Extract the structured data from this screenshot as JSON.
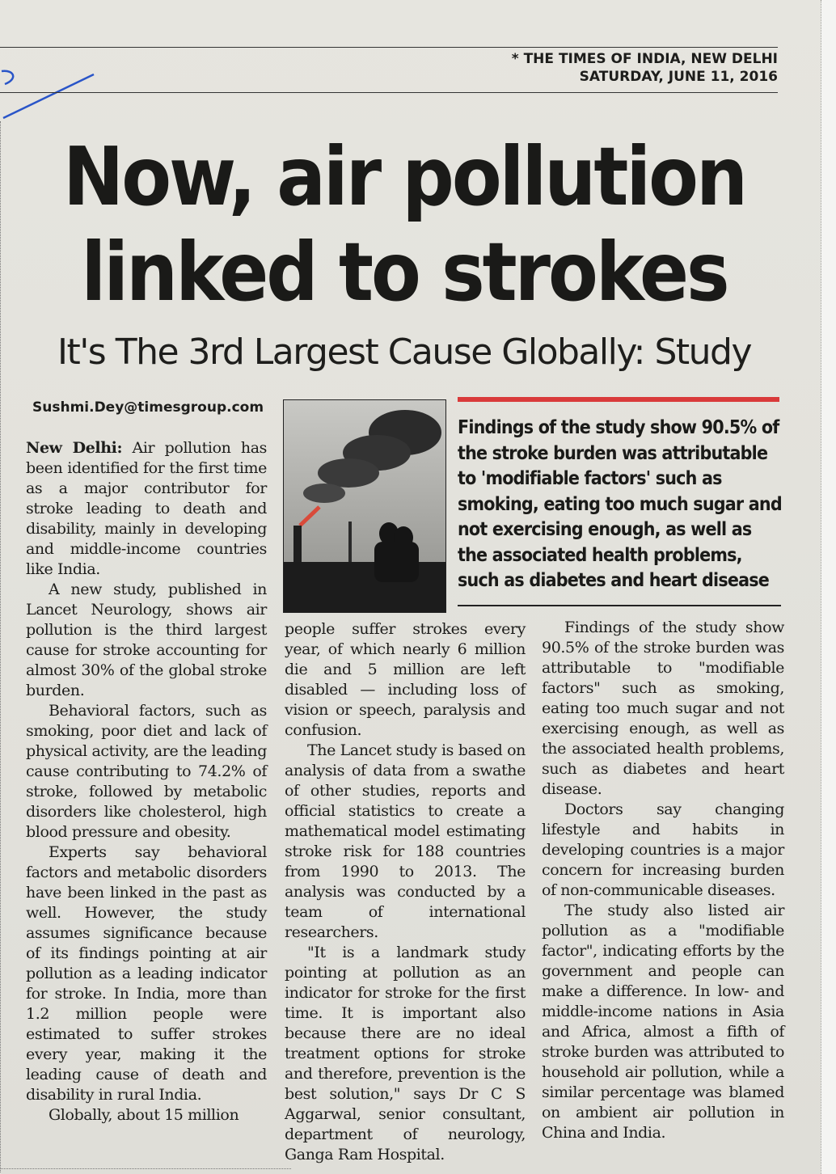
{
  "masthead": {
    "line1": "* THE TIMES OF INDIA, NEW DELHI",
    "line2": "SATURDAY, JUNE 11, 2016"
  },
  "headline": {
    "line1": "Now, air pollution",
    "line2": "linked to strokes"
  },
  "subheadline": "It's The 3rd Largest Cause Globally: Study",
  "byline": "Sushmi.Dey@timesgroup.com",
  "pull_quote": "Findings of the study show 90.5% of the stroke burden was attributable to 'modifiable factors' such as smoking, eating too much sugar and not exercising enough, as well as the associated health problems, such as diabetes and heart disease",
  "colors": {
    "pull_rule": "#d93a3a",
    "ink": "#1d1d1b",
    "pen": "#2a55c8"
  },
  "article": {
    "dateline": "New Delhi:",
    "col1": [
      "Air pollution has been identified for the first time as a major contributor for stroke leading to death and disability, mainly in developing and middle-income countries like India.",
      "A new study, published in Lancet Neurology, shows air pollution is the third largest cause for stroke accounting for almost 30% of the global stroke burden.",
      "Behavioral factors, such as smoking, poor diet and lack of physical activity, are the leading cause contributing to 74.2% of stroke, followed by metabolic disorders like cholesterol, high blood pressure and obesity.",
      "Experts say behavioral factors and metabolic disorders have been linked in the past as well. However, the study assumes significance because of its findings pointing at air pollution as a leading indicator for stroke. In India, more than 1.2 million people were estimated to suffer strokes every year, making it the leading cause of death and disability in rural India.",
      "Globally, about 15 million"
    ],
    "col2": [
      "people suffer strokes every year, of which nearly 6 million die and 5 million are left disabled — including loss of vision or speech, paralysis and confusion.",
      "The Lancet study is based on analysis of data from a swathe of other studies, reports and official statistics to create a mathematical model estimating stroke risk for 188 countries from 1990 to 2013. The analysis was conducted by a team of international researchers.",
      "\"It is a landmark study pointing at pollution as an indicator for stroke for the first time. It is important also because there are no ideal treatment options for stroke and therefore, prevention is the best solution,\" says Dr C S Aggarwal, senior consultant, department of neurology, Ganga Ram Hospital."
    ],
    "col3": [
      "Findings of the study show 90.5% of the stroke burden was attributable to \"modifiable factors\" such as smoking, eating too much sugar and not exercising enough, as well as the associated health problems, such as diabetes and heart disease.",
      "Doctors say changing lifestyle and habits in developing countries is a major concern for increasing burden of non-communicable diseases.",
      "The study also listed air pollution as a \"modifiable factor\", indicating efforts by the government and people can make a difference. In low- and middle-income nations in Asia and Africa, almost a fifth of stroke burden was attributed to household air pollution, while a similar percentage was blamed on ambient air pollution in China and India."
    ]
  }
}
